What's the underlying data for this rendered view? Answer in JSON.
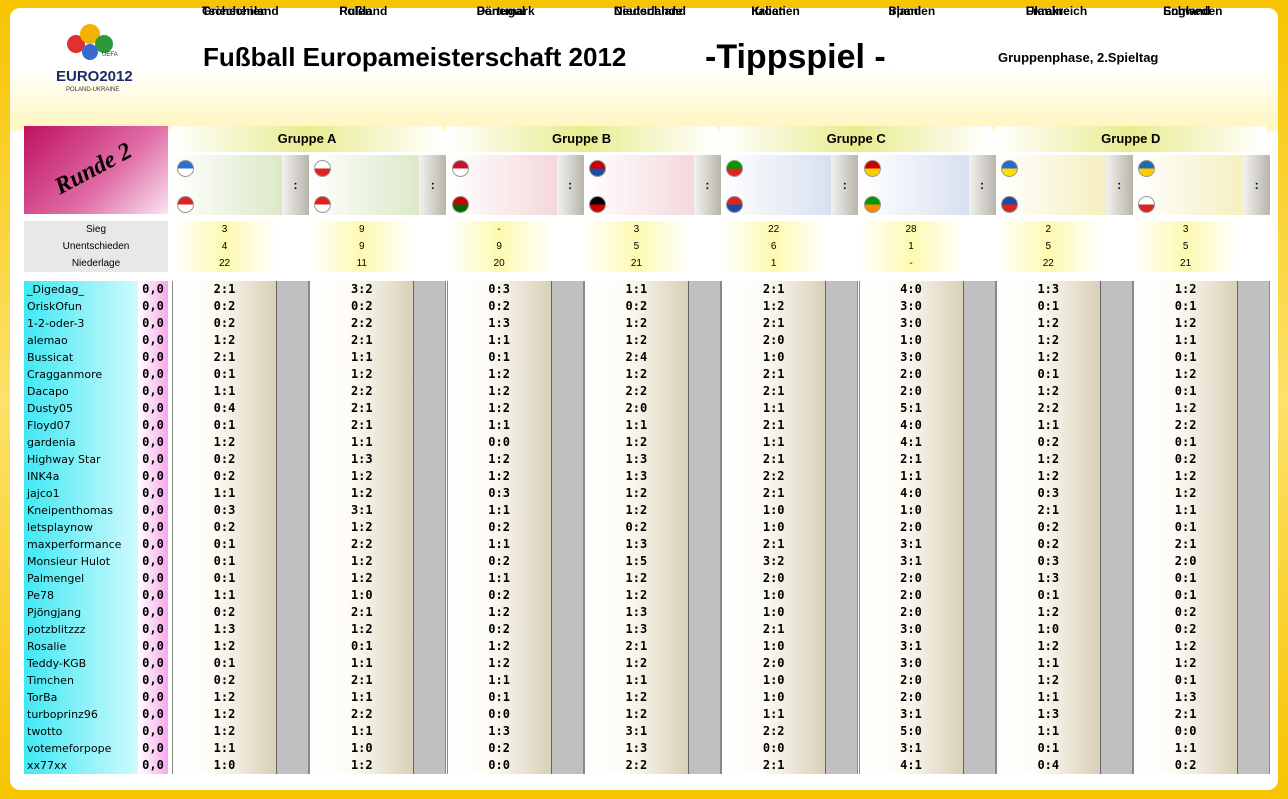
{
  "header": {
    "logo": {
      "org": "UEFA",
      "brand": "EURO2012",
      "sub": "POLAND-UKRAINE"
    },
    "title": "Fußball Europameisterschaft 2012",
    "subtitle": "-Tippspiel -",
    "phase": "Gruppenphase, 2.Spieltag"
  },
  "round": "Runde 2",
  "separator": ":",
  "groups": [
    {
      "name": "Gruppe A",
      "matches": [
        {
          "home": "Griechenland",
          "away": "Tschechien"
        },
        {
          "home": "Polen",
          "away": "Rußland"
        }
      ]
    },
    {
      "name": "Gruppe B",
      "matches": [
        {
          "home": "Dänemark",
          "away": "Portugal"
        },
        {
          "home": "Niederlande",
          "away": "Deutschland"
        }
      ]
    },
    {
      "name": "Gruppe C",
      "matches": [
        {
          "home": "Italien",
          "away": "Kroatien"
        },
        {
          "home": "Spanien",
          "away": "Irland"
        }
      ]
    },
    {
      "name": "Gruppe D",
      "matches": [
        {
          "home": "Ukraine",
          "away": "Frankreich"
        },
        {
          "home": "Schweden",
          "away": "England"
        }
      ]
    }
  ],
  "stats": [
    {
      "label": "Sieg",
      "values": [
        "3",
        "9",
        "-",
        "3",
        "22",
        "28",
        "2",
        "3"
      ]
    },
    {
      "label": "Unentschieden",
      "values": [
        "4",
        "9",
        "9",
        "5",
        "6",
        "1",
        "5",
        "5"
      ]
    },
    {
      "label": "Niederlage",
      "values": [
        "22",
        "11",
        "20",
        "21",
        "1",
        "-",
        "22",
        "21"
      ]
    }
  ],
  "players": [
    {
      "name": "_Digedag_",
      "points": "0,0",
      "tips": [
        "2:1",
        "3:2",
        "0:3",
        "1:1",
        "2:1",
        "4:0",
        "1:3",
        "1:2"
      ]
    },
    {
      "name": "OriskOfun",
      "points": "0,0",
      "tips": [
        "0:2",
        "0:2",
        "0:2",
        "0:2",
        "1:2",
        "3:0",
        "0:1",
        "0:1"
      ]
    },
    {
      "name": "1-2-oder-3",
      "points": "0,0",
      "tips": [
        "0:2",
        "2:2",
        "1:3",
        "1:2",
        "2:1",
        "3:0",
        "1:2",
        "1:2"
      ]
    },
    {
      "name": "alemao",
      "points": "0,0",
      "tips": [
        "1:2",
        "2:1",
        "1:1",
        "1:2",
        "2:0",
        "1:0",
        "1:2",
        "1:1"
      ]
    },
    {
      "name": "Bussicat",
      "points": "0,0",
      "tips": [
        "2:1",
        "1:1",
        "0:1",
        "2:4",
        "1:0",
        "3:0",
        "1:2",
        "0:1"
      ]
    },
    {
      "name": "Cragganmore",
      "points": "0,0",
      "tips": [
        "0:1",
        "1:2",
        "1:2",
        "1:2",
        "2:1",
        "2:0",
        "0:1",
        "1:2"
      ]
    },
    {
      "name": "Dacapo",
      "points": "0,0",
      "tips": [
        "1:1",
        "2:2",
        "1:2",
        "2:2",
        "2:1",
        "2:0",
        "1:2",
        "0:1"
      ]
    },
    {
      "name": "Dusty05",
      "points": "0,0",
      "tips": [
        "0:4",
        "2:1",
        "1:2",
        "2:0",
        "1:1",
        "5:1",
        "2:2",
        "1:2"
      ]
    },
    {
      "name": "Floyd07",
      "points": "0,0",
      "tips": [
        "0:1",
        "2:1",
        "1:1",
        "1:1",
        "2:1",
        "4:0",
        "1:1",
        "2:2"
      ]
    },
    {
      "name": "gardenia",
      "points": "0,0",
      "tips": [
        "1:2",
        "1:1",
        "0:0",
        "1:2",
        "1:1",
        "4:1",
        "0:2",
        "0:1"
      ]
    },
    {
      "name": "Highway Star",
      "points": "0,0",
      "tips": [
        "0:2",
        "1:3",
        "1:2",
        "1:3",
        "2:1",
        "2:1",
        "1:2",
        "0:2"
      ]
    },
    {
      "name": "INK4a",
      "points": "0,0",
      "tips": [
        "0:2",
        "1:2",
        "1:2",
        "1:3",
        "2:2",
        "1:1",
        "1:2",
        "1:2"
      ]
    },
    {
      "name": "jajco1",
      "points": "0,0",
      "tips": [
        "1:1",
        "1:2",
        "0:3",
        "1:2",
        "2:1",
        "4:0",
        "0:3",
        "1:2"
      ]
    },
    {
      "name": "Kneipenthomas",
      "points": "0,0",
      "tips": [
        "0:3",
        "3:1",
        "1:1",
        "1:2",
        "1:0",
        "1:0",
        "2:1",
        "1:1"
      ]
    },
    {
      "name": "letsplaynow",
      "points": "0,0",
      "tips": [
        "0:2",
        "1:2",
        "0:2",
        "0:2",
        "1:0",
        "2:0",
        "0:2",
        "0:1"
      ]
    },
    {
      "name": "maxperformance",
      "points": "0,0",
      "tips": [
        "0:1",
        "2:2",
        "1:1",
        "1:3",
        "2:1",
        "3:1",
        "0:2",
        "2:1"
      ]
    },
    {
      "name": "Monsieur Hulot",
      "points": "0,0",
      "tips": [
        "0:1",
        "1:2",
        "0:2",
        "1:5",
        "3:2",
        "3:1",
        "0:3",
        "2:0"
      ]
    },
    {
      "name": "Palmengel",
      "points": "0,0",
      "tips": [
        "0:1",
        "1:2",
        "1:1",
        "1:2",
        "2:0",
        "2:0",
        "1:3",
        "0:1"
      ]
    },
    {
      "name": "Pe78",
      "points": "0,0",
      "tips": [
        "1:1",
        "1:0",
        "0:2",
        "1:2",
        "1:0",
        "2:0",
        "0:1",
        "0:1"
      ]
    },
    {
      "name": "Pjöngjang",
      "points": "0,0",
      "tips": [
        "0:2",
        "2:1",
        "1:2",
        "1:3",
        "1:0",
        "2:0",
        "1:2",
        "0:2"
      ]
    },
    {
      "name": "potzblitzzz",
      "points": "0,0",
      "tips": [
        "1:3",
        "1:2",
        "0:2",
        "1:3",
        "2:1",
        "3:0",
        "1:0",
        "0:2"
      ]
    },
    {
      "name": "Rosalie",
      "points": "0,0",
      "tips": [
        "1:2",
        "0:1",
        "1:2",
        "2:1",
        "1:0",
        "3:1",
        "1:2",
        "1:2"
      ]
    },
    {
      "name": "Teddy-KGB",
      "points": "0,0",
      "tips": [
        "0:1",
        "1:1",
        "1:2",
        "1:2",
        "2:0",
        "3:0",
        "1:1",
        "1:2"
      ]
    },
    {
      "name": "Timchen",
      "points": "0,0",
      "tips": [
        "0:2",
        "2:1",
        "1:1",
        "1:1",
        "1:0",
        "2:0",
        "1:2",
        "0:1"
      ]
    },
    {
      "name": "TorBa",
      "points": "0,0",
      "tips": [
        "1:2",
        "1:1",
        "0:1",
        "1:2",
        "1:0",
        "2:0",
        "1:1",
        "1:3"
      ]
    },
    {
      "name": "turboprinz96",
      "points": "0,0",
      "tips": [
        "1:2",
        "2:2",
        "0:0",
        "1:2",
        "1:1",
        "3:1",
        "1:3",
        "2:1"
      ]
    },
    {
      "name": "twotto",
      "points": "0,0",
      "tips": [
        "1:2",
        "1:1",
        "1:3",
        "3:1",
        "2:2",
        "5:0",
        "1:1",
        "0:0"
      ]
    },
    {
      "name": "votemeforpope",
      "points": "0,0",
      "tips": [
        "1:1",
        "1:0",
        "0:2",
        "1:3",
        "0:0",
        "3:1",
        "0:1",
        "1:1"
      ]
    },
    {
      "name": "xx77xx",
      "points": "0,0",
      "tips": [
        "1:0",
        "1:2",
        "0:0",
        "2:2",
        "2:1",
        "4:1",
        "0:4",
        "0:2"
      ]
    }
  ]
}
